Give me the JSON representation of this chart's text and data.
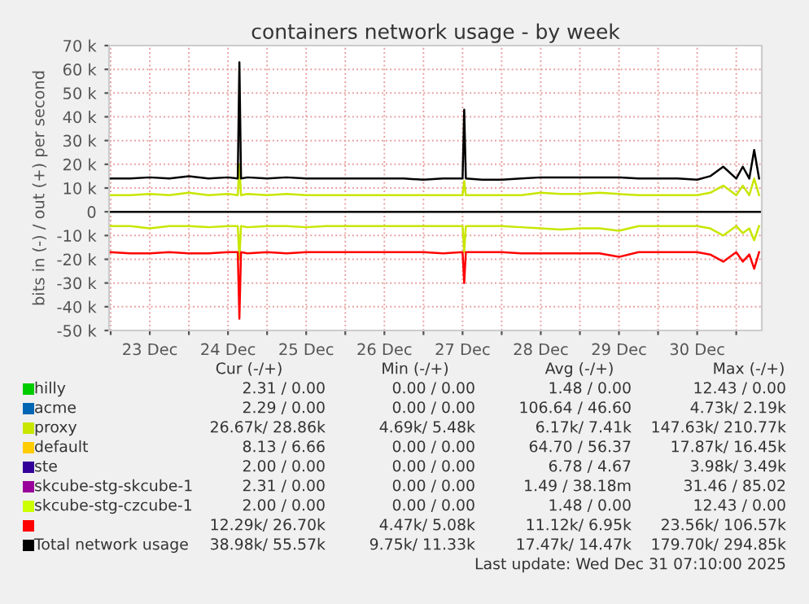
{
  "chart_data": {
    "type": "line",
    "title": "containers network usage - by week",
    "ylabel": "bits in (-) / out (+) per second",
    "xlim": [
      "2025-12-22T23:30",
      "2025-12-31T07:50"
    ],
    "xticks": [
      {
        "value": "2025-12-23T00:00",
        "label": null
      },
      {
        "value": "2025-12-23T12:00",
        "label": "23 Dec"
      },
      {
        "value": "2025-12-24T00:00",
        "label": null
      },
      {
        "value": "2025-12-24T12:00",
        "label": "24 Dec"
      },
      {
        "value": "2025-12-25T00:00",
        "label": null
      },
      {
        "value": "2025-12-25T12:00",
        "label": "25 Dec"
      },
      {
        "value": "2025-12-26T00:00",
        "label": null
      },
      {
        "value": "2025-12-26T12:00",
        "label": "26 Dec"
      },
      {
        "value": "2025-12-27T00:00",
        "label": null
      },
      {
        "value": "2025-12-27T12:00",
        "label": "27 Dec"
      },
      {
        "value": "2025-12-28T00:00",
        "label": null
      },
      {
        "value": "2025-12-28T12:00",
        "label": "28 Dec"
      },
      {
        "value": "2025-12-29T00:00",
        "label": null
      },
      {
        "value": "2025-12-29T12:00",
        "label": "29 Dec"
      },
      {
        "value": "2025-12-30T00:00",
        "label": null
      },
      {
        "value": "2025-12-30T12:00",
        "label": "30 Dec"
      },
      {
        "value": "2025-12-31T00:00",
        "label": null
      }
    ],
    "ylim": [
      -50000,
      70000
    ],
    "yticks": [
      {
        "value": -50000,
        "label": "-50 k"
      },
      {
        "value": -40000,
        "label": "-40 k"
      },
      {
        "value": -30000,
        "label": "-30 k"
      },
      {
        "value": -20000,
        "label": "-20 k"
      },
      {
        "value": -10000,
        "label": "-10 k"
      },
      0,
      {
        "value": 10000,
        "label": "10 k"
      },
      {
        "value": 20000,
        "label": "20 k"
      },
      {
        "value": 30000,
        "label": "30 k"
      },
      {
        "value": 40000,
        "label": "40 k"
      },
      {
        "value": 50000,
        "label": "50 k"
      },
      {
        "value": 60000,
        "label": "60 k"
      },
      {
        "value": 70000,
        "label": "70 k"
      }
    ],
    "grid": true,
    "legend": "bottom",
    "ref_lines": [
      {
        "axis": "y",
        "value": 0,
        "color": "#000000"
      }
    ],
    "line_style": "solid",
    "marker": "none",
    "series": [
      {
        "name": "hilly",
        "color": "#00cc00",
        "values": [
          null
        ]
      },
      {
        "name": "acme",
        "color": "#0066b3",
        "values": [
          null
        ]
      },
      {
        "name": "proxy",
        "color": "#c8e600",
        "x": [
          "2025-12-23T00:00",
          "2025-12-23T06:00",
          "2025-12-23T12:00",
          "2025-12-23T18:00",
          "2025-12-24T00:00",
          "2025-12-24T06:00",
          "2025-12-24T12:00",
          "2025-12-24T15:00",
          "2025-12-24T15:30",
          "2025-12-24T16:00",
          "2025-12-24T18:00",
          "2025-12-25T00:00",
          "2025-12-25T06:00",
          "2025-12-25T12:00",
          "2025-12-25T18:00",
          "2025-12-26T00:00",
          "2025-12-26T06:00",
          "2025-12-26T12:00",
          "2025-12-26T18:00",
          "2025-12-27T00:00",
          "2025-12-27T06:00",
          "2025-12-27T12:00",
          "2025-12-27T12:30",
          "2025-12-27T13:00",
          "2025-12-27T18:00",
          "2025-12-28T00:00",
          "2025-12-28T06:00",
          "2025-12-28T12:00",
          "2025-12-28T18:00",
          "2025-12-29T00:00",
          "2025-12-29T06:00",
          "2025-12-29T12:00",
          "2025-12-29T18:00",
          "2025-12-30T00:00",
          "2025-12-30T06:00",
          "2025-12-30T12:00",
          "2025-12-30T16:00",
          "2025-12-30T20:00",
          "2025-12-31T00:00",
          "2025-12-31T02:00",
          "2025-12-31T04:00",
          "2025-12-31T05:30",
          "2025-12-31T07:00",
          null,
          "2025-12-23T00:00",
          "2025-12-23T06:00",
          "2025-12-23T12:00",
          "2025-12-23T18:00",
          "2025-12-24T00:00",
          "2025-12-24T06:00",
          "2025-12-24T12:00",
          "2025-12-24T15:00",
          "2025-12-24T15:30",
          "2025-12-24T16:00",
          "2025-12-24T18:00",
          "2025-12-25T00:00",
          "2025-12-25T06:00",
          "2025-12-25T12:00",
          "2025-12-25T18:00",
          "2025-12-26T00:00",
          "2025-12-26T06:00",
          "2025-12-26T12:00",
          "2025-12-26T18:00",
          "2025-12-27T00:00",
          "2025-12-27T06:00",
          "2025-12-27T12:00",
          "2025-12-27T12:30",
          "2025-12-27T13:00",
          "2025-12-27T18:00",
          "2025-12-28T00:00",
          "2025-12-28T06:00",
          "2025-12-28T12:00",
          "2025-12-28T18:00",
          "2025-12-29T00:00",
          "2025-12-29T06:00",
          "2025-12-29T12:00",
          "2025-12-29T18:00",
          "2025-12-30T00:00",
          "2025-12-30T06:00",
          "2025-12-30T12:00",
          "2025-12-30T16:00",
          "2025-12-30T20:00",
          "2025-12-31T00:00",
          "2025-12-31T02:00",
          "2025-12-31T04:00",
          "2025-12-31T05:30",
          "2025-12-31T07:00"
        ],
        "values": [
          7000,
          7000,
          7500,
          7000,
          8000,
          7000,
          7500,
          7000,
          20000,
          7000,
          7500,
          7000,
          7500,
          7000,
          7000,
          7000,
          7000,
          7000,
          7000,
          7000,
          7000,
          7000,
          13000,
          7000,
          7000,
          7000,
          7000,
          8000,
          7500,
          7500,
          8000,
          7500,
          7000,
          7000,
          7000,
          7000,
          8000,
          11000,
          7000,
          11000,
          7000,
          14000,
          7000,
          null,
          -6000,
          -6000,
          -7000,
          -6000,
          -6000,
          -6500,
          -6000,
          -6000,
          -20000,
          -6000,
          -6500,
          -6000,
          -6000,
          -6500,
          -6000,
          -6000,
          -6000,
          -6000,
          -6000,
          -6000,
          -6000,
          -6000,
          -17000,
          -6000,
          -6000,
          -6000,
          -6500,
          -7000,
          -7500,
          -7000,
          -7000,
          -8000,
          -6000,
          -6000,
          -6000,
          -6000,
          -7000,
          -10000,
          -6000,
          -9000,
          -7000,
          -12000,
          -6000
        ]
      },
      {
        "name": "default",
        "color": "#ffcc00",
        "values": [
          null
        ]
      },
      {
        "name": "ste",
        "color": "#330099",
        "values": [
          null
        ]
      },
      {
        "name": "skcube-stg-skcube-1",
        "color": "#990099",
        "values": [
          null
        ]
      },
      {
        "name": "skcube-stg-czcube-1",
        "color": "#ccff00",
        "values": [
          null
        ]
      },
      {
        "name": null,
        "color": "#ff0000",
        "x": [
          "2025-12-23T00:00",
          "2025-12-23T06:00",
          "2025-12-23T12:00",
          "2025-12-23T18:00",
          "2025-12-24T00:00",
          "2025-12-24T06:00",
          "2025-12-24T12:00",
          "2025-12-24T15:00",
          "2025-12-24T15:30",
          "2025-12-24T16:00",
          "2025-12-24T18:00",
          "2025-12-25T00:00",
          "2025-12-25T06:00",
          "2025-12-25T12:00",
          "2025-12-25T18:00",
          "2025-12-26T00:00",
          "2025-12-26T06:00",
          "2025-12-26T12:00",
          "2025-12-26T18:00",
          "2025-12-27T00:00",
          "2025-12-27T06:00",
          "2025-12-27T12:00",
          "2025-12-27T12:30",
          "2025-12-27T13:00",
          "2025-12-27T18:00",
          "2025-12-28T00:00",
          "2025-12-28T06:00",
          "2025-12-28T12:00",
          "2025-12-28T18:00",
          "2025-12-29T00:00",
          "2025-12-29T06:00",
          "2025-12-29T12:00",
          "2025-12-29T18:00",
          "2025-12-30T00:00",
          "2025-12-30T06:00",
          "2025-12-30T12:00",
          "2025-12-30T16:00",
          "2025-12-30T20:00",
          "2025-12-31T00:00",
          "2025-12-31T02:00",
          "2025-12-31T04:00",
          "2025-12-31T05:30",
          "2025-12-31T07:00"
        ],
        "values": [
          -17000,
          -17500,
          -17500,
          -17000,
          -17500,
          -17500,
          -17000,
          -17000,
          -45000,
          -17000,
          -17500,
          -17000,
          -17500,
          -17000,
          -17000,
          -17000,
          -17000,
          -17000,
          -17000,
          -17000,
          -17500,
          -17000,
          -30000,
          -17000,
          -17000,
          -17000,
          -17500,
          -17500,
          -17500,
          -17500,
          -17500,
          -19000,
          -17000,
          -17000,
          -17000,
          -17000,
          -18000,
          -21000,
          -17000,
          -21000,
          -18000,
          -24000,
          -17000
        ]
      },
      {
        "name": "Total network usage",
        "color": "#000000",
        "x": [
          "2025-12-23T00:00",
          "2025-12-23T06:00",
          "2025-12-23T12:00",
          "2025-12-23T18:00",
          "2025-12-24T00:00",
          "2025-12-24T06:00",
          "2025-12-24T12:00",
          "2025-12-24T15:00",
          "2025-12-24T15:30",
          "2025-12-24T16:00",
          "2025-12-24T18:00",
          "2025-12-25T00:00",
          "2025-12-25T06:00",
          "2025-12-25T12:00",
          "2025-12-25T18:00",
          "2025-12-26T00:00",
          "2025-12-26T06:00",
          "2025-12-26T12:00",
          "2025-12-26T18:00",
          "2025-12-27T00:00",
          "2025-12-27T06:00",
          "2025-12-27T12:00",
          "2025-12-27T12:30",
          "2025-12-27T13:00",
          "2025-12-27T18:00",
          "2025-12-28T00:00",
          "2025-12-28T06:00",
          "2025-12-28T12:00",
          "2025-12-28T18:00",
          "2025-12-29T00:00",
          "2025-12-29T06:00",
          "2025-12-29T12:00",
          "2025-12-29T18:00",
          "2025-12-30T00:00",
          "2025-12-30T06:00",
          "2025-12-30T12:00",
          "2025-12-30T16:00",
          "2025-12-30T20:00",
          "2025-12-31T00:00",
          "2025-12-31T02:00",
          "2025-12-31T04:00",
          "2025-12-31T05:30",
          "2025-12-31T07:00"
        ],
        "values": [
          14000,
          14000,
          14500,
          14000,
          15000,
          14000,
          14500,
          14000,
          63000,
          14000,
          14500,
          14000,
          14500,
          14000,
          14000,
          14000,
          14000,
          14000,
          14000,
          13500,
          14000,
          14000,
          43000,
          14000,
          13500,
          13500,
          14000,
          14500,
          14500,
          14500,
          14500,
          14500,
          14000,
          14000,
          14000,
          13500,
          15000,
          19000,
          14000,
          19000,
          14000,
          26000,
          14000
        ]
      }
    ],
    "annotations": [
      "Cur (-/+)",
      "Min (-/+)",
      "Avg (-/+)",
      "Max (-/+)",
      "2.31 / 0.00",
      "0.00 / 0.00",
      "1.48 / 0.00",
      "12.43 / 0.00",
      "2.29 / 0.00",
      "0.00 / 0.00",
      "106.64 / 46.60",
      "4.73k/ 2.19k",
      "26.67k/ 28.86k",
      "4.69k/ 5.48k",
      "6.17k/ 7.41k",
      "147.63k/ 210.77k",
      "8.13 / 6.66",
      "0.00 / 0.00",
      "64.70 / 56.37",
      "17.87k/ 16.45k",
      "2.00 / 0.00",
      "0.00 / 0.00",
      "6.78 / 4.67",
      "3.98k/ 3.49k",
      "2.31 / 0.00",
      "0.00 / 0.00",
      "1.49 / 38.18m",
      "31.46 / 85.02",
      "2.00 / 0.00",
      "0.00 / 0.00",
      "1.48 / 0.00",
      "12.43 / 0.00",
      "12.29k/ 26.70k",
      "4.47k/ 5.08k",
      "11.12k/ 6.95k",
      "23.56k/ 106.57k",
      "38.98k/ 55.57k",
      "9.75k/ 11.33k",
      "17.47k/ 14.47k",
      "179.70k/ 294.85k",
      "Last update: Wed Dec 31 07:10:00 2025"
    ]
  }
}
